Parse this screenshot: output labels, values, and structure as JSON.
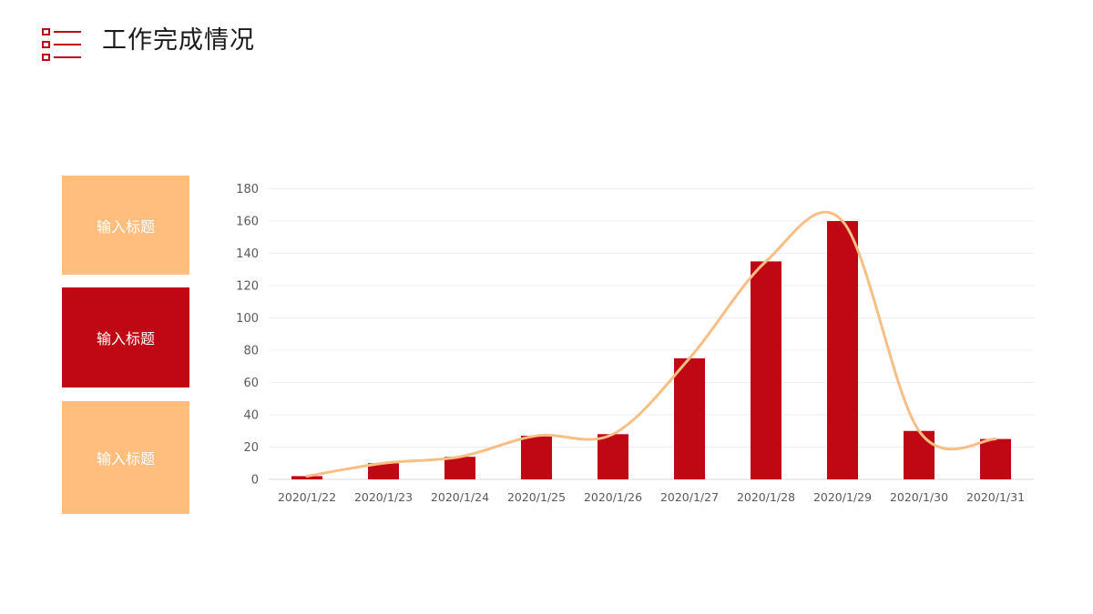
{
  "header": {
    "title": "工作完成情况",
    "icon": "list-icon",
    "accent_color": "#C00714"
  },
  "cards": [
    {
      "label": "输入标题",
      "color": "#FFBD7E"
    },
    {
      "label": "输入标题",
      "color": "#C00714"
    },
    {
      "label": "输入标题",
      "color": "#FFBD7E"
    }
  ],
  "chart_data": {
    "type": "bar",
    "title": "",
    "xlabel": "",
    "ylabel": "",
    "categories": [
      "2020/1/22",
      "2020/1/23",
      "2020/1/24",
      "2020/1/25",
      "2020/1/26",
      "2020/1/27",
      "2020/1/28",
      "2020/1/29",
      "2020/1/30",
      "2020/1/31"
    ],
    "series": [
      {
        "name": "bars",
        "type": "bar",
        "color": "#C00714",
        "values": [
          2,
          10,
          14,
          27,
          28,
          75,
          135,
          160,
          30,
          25
        ]
      },
      {
        "name": "trend",
        "type": "line",
        "color": "#F8BE84",
        "smooth": true,
        "values": [
          2,
          10,
          14,
          27,
          28,
          75,
          135,
          160,
          30,
          25
        ]
      }
    ],
    "ylim": [
      0,
      180
    ],
    "yticks": [
      0,
      20,
      40,
      60,
      80,
      100,
      120,
      140,
      160,
      180
    ],
    "grid": true,
    "legend": "none"
  }
}
